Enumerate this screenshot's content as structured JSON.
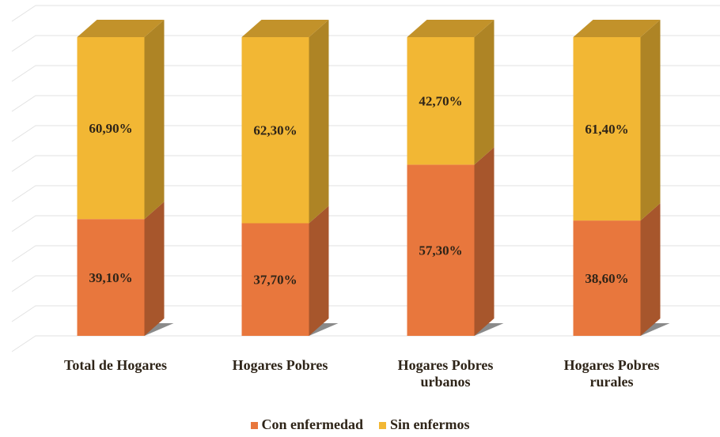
{
  "chart_data": {
    "type": "stacked_bar_3d",
    "categories": [
      "Total de Hogares",
      "Hogares Pobres",
      "Hogares Pobres urbanos",
      "Hogares Pobres rurales"
    ],
    "series": [
      {
        "name": "Con enfermedad",
        "color": "#e8773d",
        "values": [
          39.1,
          37.7,
          57.3,
          38.6
        ],
        "value_labels": [
          "39,10%",
          "37,70%",
          "57,30%",
          "38,60%"
        ]
      },
      {
        "name": "Sin enfermos",
        "color": "#f2b734",
        "values": [
          60.9,
          62.3,
          42.7,
          61.4
        ],
        "value_labels": [
          "60,90%",
          "62,30%",
          "42,70%",
          "61,40%"
        ]
      }
    ],
    "ylim": [
      0,
      100
    ],
    "grid": true
  }
}
